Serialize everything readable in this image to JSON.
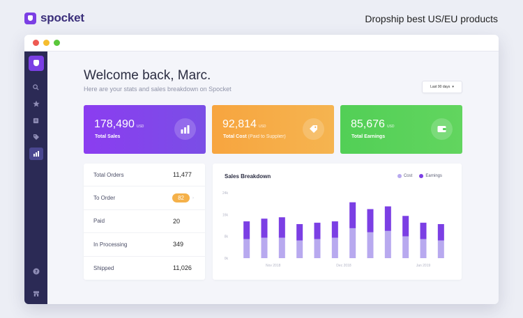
{
  "brand": {
    "name": "spocket",
    "tagline": "Dropship best US/EU products"
  },
  "window": {
    "traffic_colors": [
      "#ee5a52",
      "#f5bd2f",
      "#5ac73a"
    ]
  },
  "sidebar": {
    "icons": [
      "search-icon",
      "star-icon",
      "book-icon",
      "tag-icon",
      "chart-icon"
    ],
    "active": "chart-icon",
    "bottom_icons": [
      "help-icon",
      "store-icon"
    ]
  },
  "header": {
    "welcome": "Welcome back, Marc.",
    "subtitle": "Here are your stats and sales breakdown on Spocket",
    "range_label": "Last 90 days"
  },
  "stats": {
    "sales": {
      "value": "178,490",
      "unit": "USD",
      "label": "Total Sales",
      "color_from": "#8b3df0",
      "color_to": "#7a4ee6"
    },
    "cost": {
      "value": "92,814",
      "unit": "USD",
      "label": "Total Cost",
      "sublabel": "(Paid to Supplier)",
      "color_from": "#f7a53f",
      "color_to": "#f5b450"
    },
    "earnings": {
      "value": "85,676",
      "unit": "USD",
      "label": "Total Earnings",
      "color_from": "#52cf56",
      "color_to": "#62d55f"
    }
  },
  "orders": [
    {
      "label": "Total Orders",
      "value": "11,477"
    },
    {
      "label": "To Order",
      "value": "82",
      "badge": true
    },
    {
      "label": "Paid",
      "value": "20"
    },
    {
      "label": "In Processing",
      "value": "349"
    },
    {
      "label": "Shipped",
      "value": "11,026"
    }
  ],
  "chart_data": {
    "type": "bar",
    "stacked": true,
    "title": "Sales Breakdown",
    "y_ticks": [
      "0k",
      "8k",
      "16k",
      "24k"
    ],
    "ylim": [
      0,
      24
    ],
    "x_labels": [
      "Nov 2018",
      "Dec 2018",
      "Jan 2019"
    ],
    "x_label_positions": [
      1.5,
      5.5,
      10
    ],
    "series": [
      {
        "name": "Cost",
        "color": "#b8a9ef",
        "values": [
          7,
          7.5,
          7.5,
          6.5,
          7,
          7.5,
          11,
          9.5,
          10,
          8,
          7,
          6.5
        ]
      },
      {
        "name": "Earnings",
        "color": "#7b3fe4",
        "values": [
          6.5,
          7,
          7.5,
          6,
          6,
          6,
          9.5,
          8.5,
          9,
          7.5,
          6,
          6
        ]
      }
    ],
    "grid": false,
    "legend": "top-right"
  }
}
